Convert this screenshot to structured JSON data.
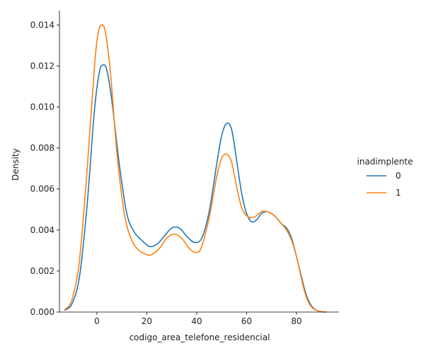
{
  "chart_data": {
    "type": "line",
    "xlabel": "codigo_area_telefone_residencial",
    "ylabel": "Density",
    "xlim": [
      -15,
      97
    ],
    "ylim": [
      0,
      0.0147
    ],
    "x_ticks": [
      0,
      20,
      40,
      60,
      80
    ],
    "x_tick_labels": [
      "0",
      "20",
      "40",
      "60",
      "80"
    ],
    "y_ticks": [
      0,
      0.002,
      0.004,
      0.006,
      0.008,
      0.01,
      0.012,
      0.014
    ],
    "y_tick_labels": [
      "0.000",
      "0.002",
      "0.004",
      "0.006",
      "0.008",
      "0.010",
      "0.012",
      "0.014"
    ],
    "grid": false,
    "legend": {
      "title": "inadimplente",
      "placement": "right"
    },
    "series": [
      {
        "name": "0",
        "color": "#1f77b4",
        "x": [
          -13,
          -10,
          -7,
          -4,
          -1,
          1,
          2.5,
          4,
          6,
          9,
          12,
          15,
          18,
          21,
          24,
          27,
          30,
          33,
          36,
          39,
          42,
          45,
          48,
          50,
          52,
          54,
          56,
          58,
          60,
          62,
          64,
          66,
          68,
          70,
          72,
          74,
          76,
          78,
          80,
          82,
          84,
          86,
          88,
          90,
          92
        ],
        "y": [
          8e-05,
          0.0004,
          0.0017,
          0.0051,
          0.0098,
          0.0117,
          0.01205,
          0.0118,
          0.0103,
          0.0072,
          0.0048,
          0.0039,
          0.0035,
          0.0032,
          0.0033,
          0.0037,
          0.0041,
          0.0041,
          0.0037,
          0.0034,
          0.0036,
          0.0049,
          0.0072,
          0.0086,
          0.0092,
          0.0089,
          0.0074,
          0.0058,
          0.0048,
          0.0044,
          0.0045,
          0.0048,
          0.0049,
          0.0048,
          0.0046,
          0.0043,
          0.0041,
          0.0036,
          0.0027,
          0.0017,
          0.0008,
          0.0003,
          8e-05,
          2e-05,
          0.0
        ]
      },
      {
        "name": "1",
        "color": "#ff7f0e",
        "x": [
          -13,
          -10,
          -7,
          -4,
          -1,
          0.5,
          2,
          3.5,
          5.5,
          8,
          11,
          14,
          17,
          20,
          22,
          25,
          28,
          31,
          34,
          37,
          40,
          42,
          45,
          48,
          50,
          52,
          54,
          56,
          58,
          60,
          62,
          64,
          66,
          68,
          70,
          72,
          74,
          76,
          78,
          80,
          82,
          84,
          86,
          88,
          90,
          92
        ],
        "y": [
          0.0001,
          0.0006,
          0.0025,
          0.0068,
          0.0119,
          0.0136,
          0.014,
          0.0136,
          0.0116,
          0.0078,
          0.0048,
          0.0035,
          0.003,
          0.0028,
          0.0028,
          0.0031,
          0.0036,
          0.0038,
          0.0036,
          0.0031,
          0.0029,
          0.0032,
          0.0046,
          0.0066,
          0.0075,
          0.0077,
          0.0073,
          0.0061,
          0.0051,
          0.0047,
          0.0046,
          0.0047,
          0.0049,
          0.0049,
          0.0048,
          0.0046,
          0.0043,
          0.004,
          0.0035,
          0.0027,
          0.0016,
          0.0007,
          0.00025,
          8e-05,
          2e-05,
          0.0
        ]
      }
    ]
  }
}
